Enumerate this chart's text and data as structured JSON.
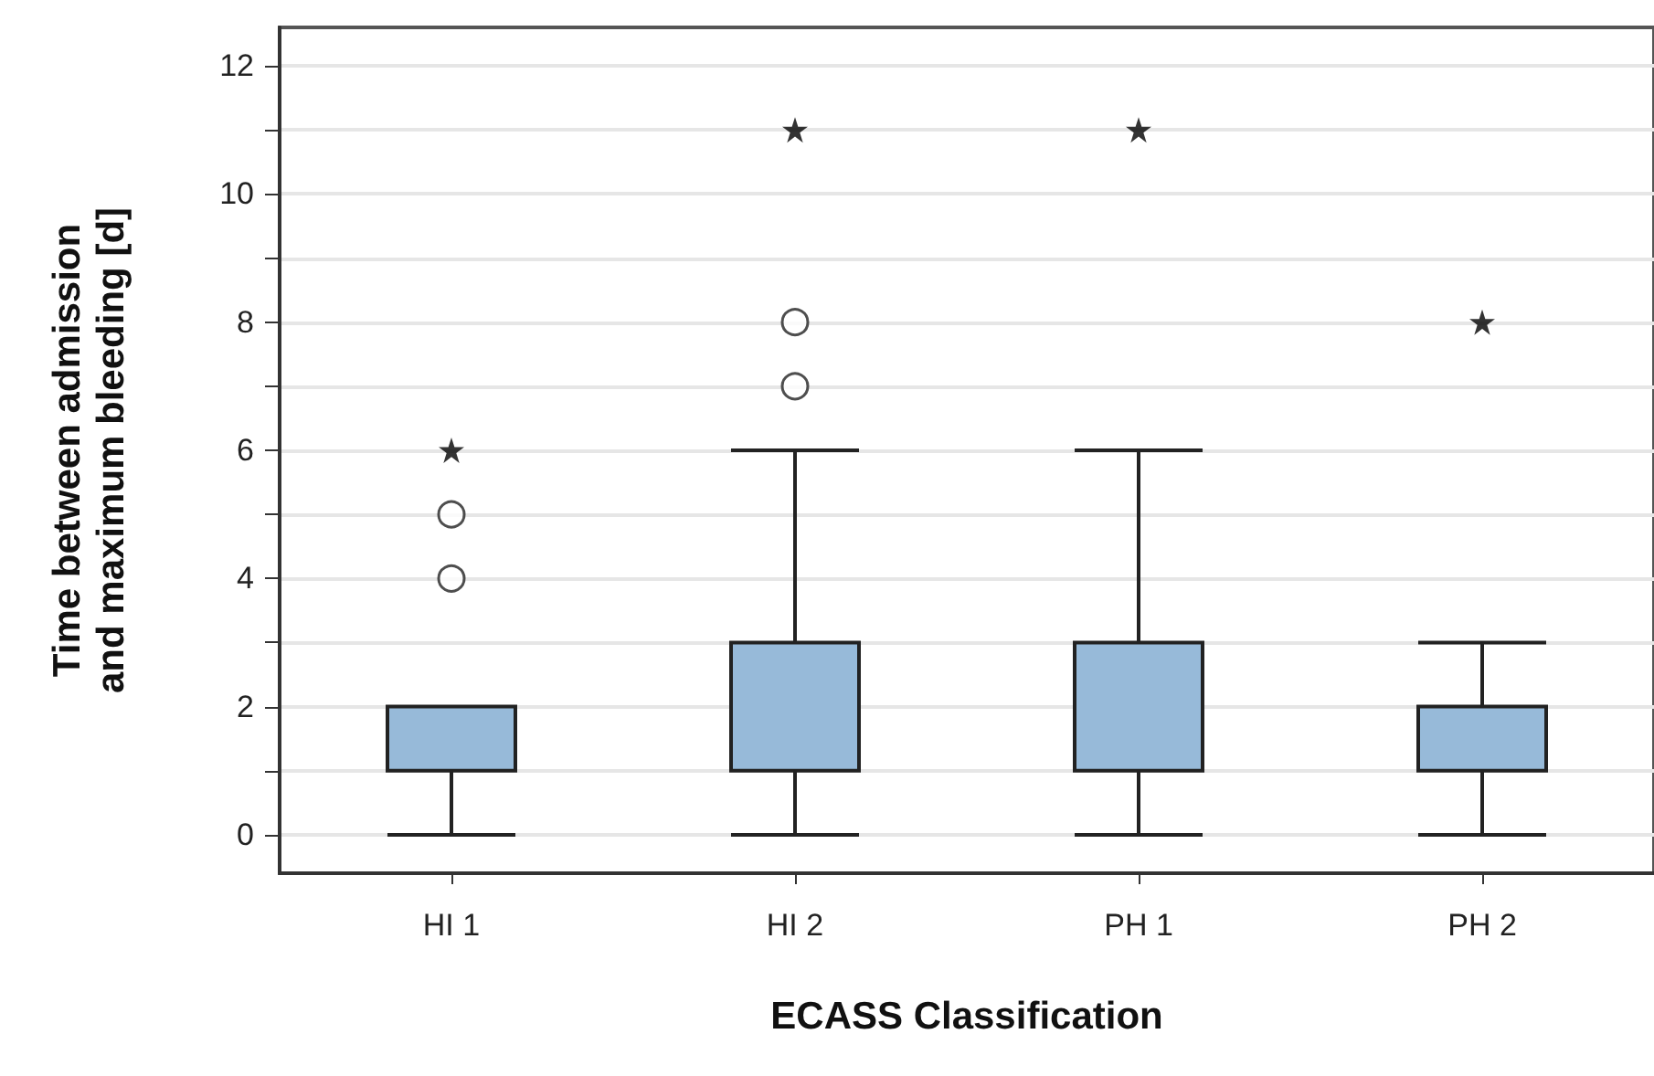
{
  "chart_data": {
    "type": "box",
    "xlabel": "ECASS Classification",
    "ylabel": "Time between admission and maximum bleeding [d]",
    "categories": [
      "HI 1",
      "HI 2",
      "PH 1",
      "PH 2"
    ],
    "ylim": [
      -0.6,
      12.6
    ],
    "yticks": [
      0,
      {
        "value": 1,
        "label": null
      },
      2,
      {
        "value": 3,
        "label": null
      },
      4,
      {
        "value": 5,
        "label": null
      },
      6,
      {
        "value": 7,
        "label": null
      },
      8,
      {
        "value": 9,
        "label": null
      },
      10,
      {
        "value": 11,
        "label": null
      },
      12
    ],
    "grid": "y",
    "series": [
      {
        "type": "box",
        "color": "#97bad9",
        "boxes": [
          {
            "low": 0,
            "q1": 1,
            "median": 1,
            "q3": 2,
            "high": 2,
            "outliers": [
              4,
              5
            ]
          },
          {
            "low": 0,
            "q1": 1,
            "median": 1,
            "q3": 3,
            "high": 6,
            "outliers": [
              7,
              8
            ]
          },
          {
            "low": 0,
            "q1": 1,
            "median": 1,
            "q3": 3,
            "high": 6
          },
          {
            "low": 0,
            "q1": 1,
            "median": 1,
            "q3": 2,
            "high": 3
          }
        ]
      },
      {
        "type": "scatter",
        "marker": "star",
        "color": "#000000",
        "x": [
          "HI 1",
          "HI 2",
          "PH 1",
          "PH 2"
        ],
        "values": [
          6,
          11,
          11,
          8
        ]
      }
    ]
  }
}
